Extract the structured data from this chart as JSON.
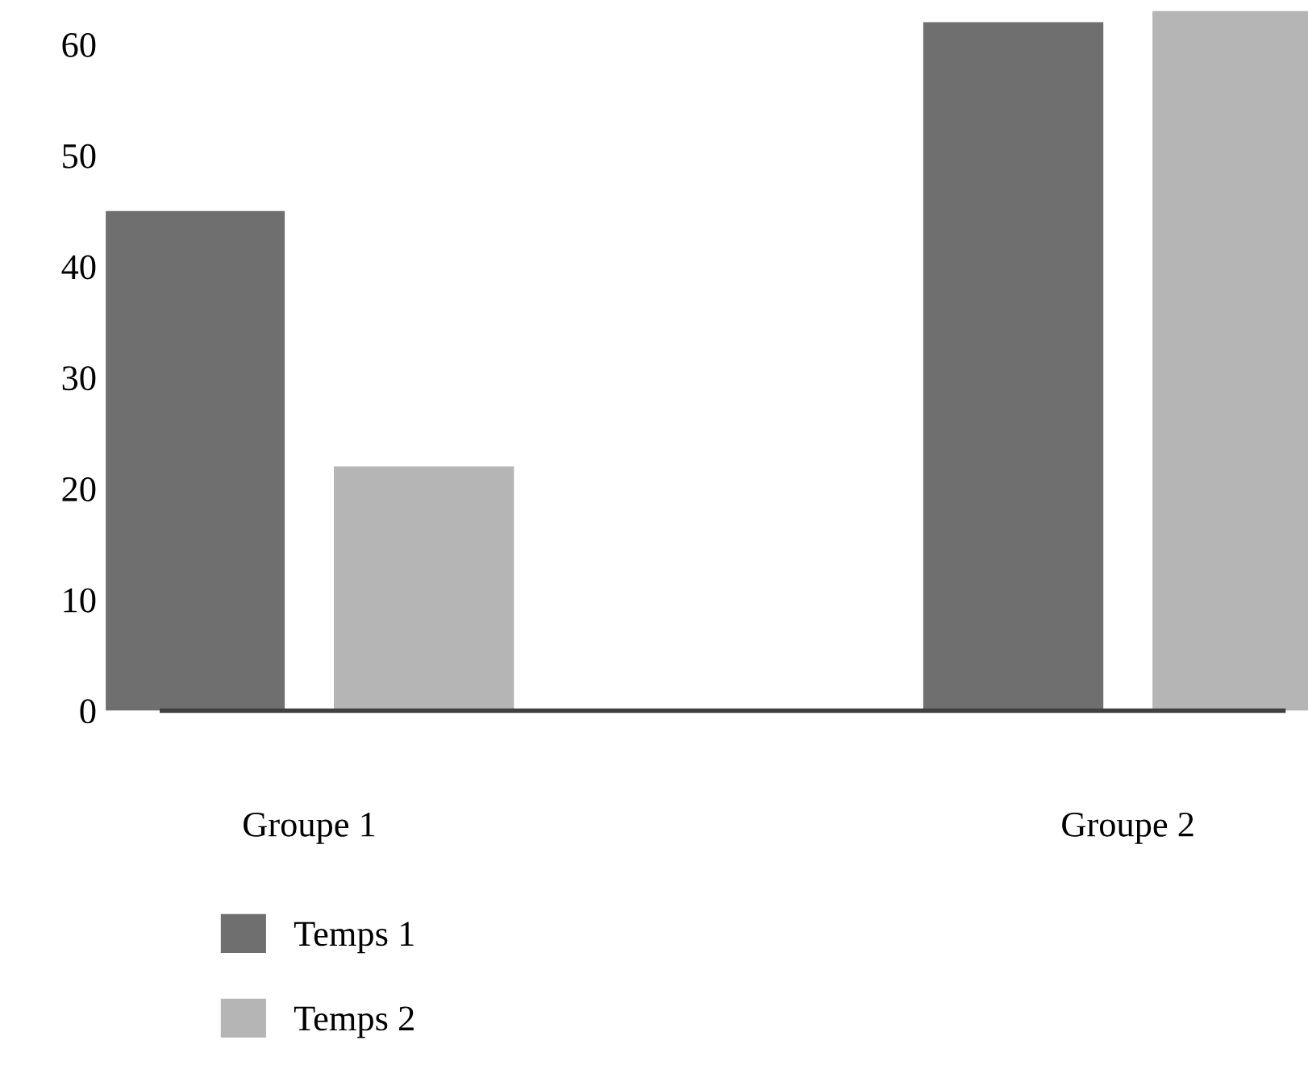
{
  "chart_data": {
    "type": "bar",
    "categories": [
      "Groupe 1",
      "Groupe 2"
    ],
    "series": [
      {
        "name": "Temps 1",
        "color": "#6f6f6f",
        "values": [
          45,
          62
        ]
      },
      {
        "name": "Temps 2",
        "color": "#b5b5b5",
        "values": [
          22,
          63
        ]
      }
    ],
    "ylim": [
      0,
      64
    ],
    "yticks": [
      0,
      10,
      20,
      30,
      40,
      50,
      60
    ],
    "grid": false,
    "legend": "bottom"
  }
}
